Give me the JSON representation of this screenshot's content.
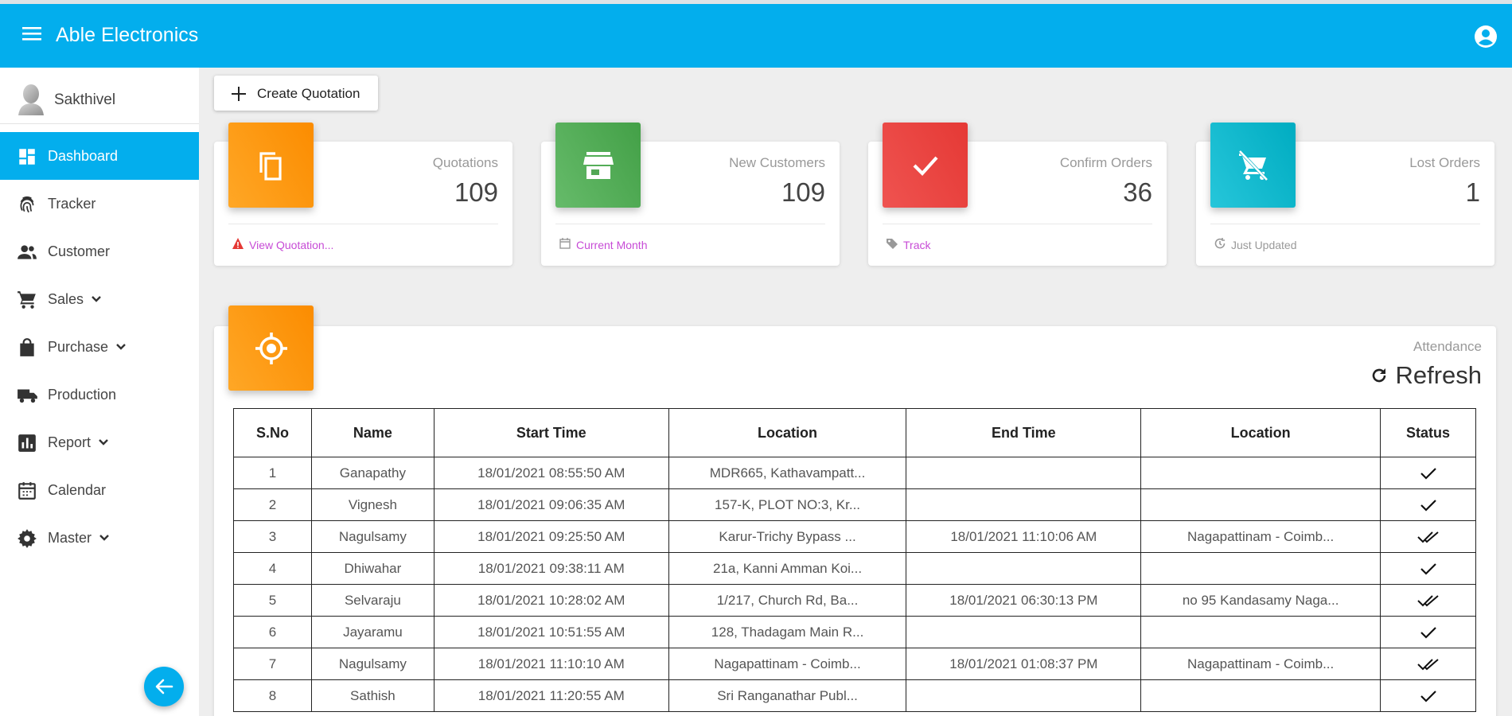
{
  "app": {
    "title": "Able Electronics"
  },
  "user": {
    "name": "Sakthivel"
  },
  "sidebar": {
    "items": [
      {
        "label": "Dashboard",
        "icon": "dashboard-icon",
        "active": true,
        "expandable": false
      },
      {
        "label": "Tracker",
        "icon": "fingerprint-icon",
        "active": false,
        "expandable": false
      },
      {
        "label": "Customer",
        "icon": "people-icon",
        "active": false,
        "expandable": false
      },
      {
        "label": "Sales",
        "icon": "cart-icon",
        "active": false,
        "expandable": true
      },
      {
        "label": "Purchase",
        "icon": "shopping-bag-icon",
        "active": false,
        "expandable": true
      },
      {
        "label": "Production",
        "icon": "truck-icon",
        "active": false,
        "expandable": false
      },
      {
        "label": "Report",
        "icon": "bar-chart-icon",
        "active": false,
        "expandable": true
      },
      {
        "label": "Calendar",
        "icon": "calendar-icon",
        "active": false,
        "expandable": false
      },
      {
        "label": "Master",
        "icon": "gear-icon",
        "active": false,
        "expandable": true
      }
    ]
  },
  "toolbar": {
    "create_label": "Create Quotation"
  },
  "cards": [
    {
      "title": "Quotations",
      "value": "109",
      "footer": "View Quotation...",
      "footer_icon": "warning-icon",
      "footer_color": "#c74bd6",
      "icon": "copy-icon",
      "gradient": [
        "#ffa726",
        "#fb8c00"
      ]
    },
    {
      "title": "New Customers",
      "value": "109",
      "footer": "Current Month",
      "footer_icon": "calendar-icon",
      "footer_color": "#c74bd6",
      "icon": "store-icon",
      "gradient": [
        "#66bb6a",
        "#43a047"
      ]
    },
    {
      "title": "Confirm Orders",
      "value": "36",
      "footer": "Track",
      "footer_icon": "tag-icon",
      "footer_color": "#c74bd6",
      "icon": "check-icon",
      "gradient": [
        "#ef5350",
        "#e53935"
      ]
    },
    {
      "title": "Lost Orders",
      "value": "1",
      "footer": "Just Updated",
      "footer_icon": "update-icon",
      "footer_color": "#999999",
      "icon": "remove-cart-icon",
      "gradient": [
        "#26c6da",
        "#00acc1"
      ]
    }
  ],
  "attendance": {
    "title": "Attendance",
    "refresh_label": "Refresh",
    "columns": [
      "S.No",
      "Name",
      "Start Time",
      "Location",
      "End Time",
      "Location",
      "Status"
    ],
    "rows": [
      {
        "sno": "1",
        "name": "Ganapathy",
        "start": "18/01/2021 08:55:50 AM",
        "start_loc": "MDR665, Kathavampatt...",
        "end": "",
        "end_loc": "",
        "status": "single-check"
      },
      {
        "sno": "2",
        "name": "Vignesh",
        "start": "18/01/2021 09:06:35 AM",
        "start_loc": "157-K, PLOT NO:3, Kr...",
        "end": "",
        "end_loc": "",
        "status": "single-check"
      },
      {
        "sno": "3",
        "name": "Nagulsamy",
        "start": "18/01/2021 09:25:50 AM",
        "start_loc": "Karur-Trichy Bypass ...",
        "end": "18/01/2021 11:10:06 AM",
        "end_loc": "Nagapattinam - Coimb...",
        "status": "double-check"
      },
      {
        "sno": "4",
        "name": "Dhiwahar",
        "start": "18/01/2021 09:38:11 AM",
        "start_loc": "21a, Kanni Amman Koi...",
        "end": "",
        "end_loc": "",
        "status": "single-check"
      },
      {
        "sno": "5",
        "name": "Selvaraju",
        "start": "18/01/2021 10:28:02 AM",
        "start_loc": "1/217, Church Rd, Ba...",
        "end": "18/01/2021 06:30:13 PM",
        "end_loc": "no 95 Kandasamy Naga...",
        "status": "double-check"
      },
      {
        "sno": "6",
        "name": "Jayaramu",
        "start": "18/01/2021 10:51:55 AM",
        "start_loc": "128, Thadagam Main R...",
        "end": "",
        "end_loc": "",
        "status": "single-check"
      },
      {
        "sno": "7",
        "name": "Nagulsamy",
        "start": "18/01/2021 11:10:10 AM",
        "start_loc": "Nagapattinam - Coimb...",
        "end": "18/01/2021 01:08:37 PM",
        "end_loc": "Nagapattinam - Coimb...",
        "status": "double-check"
      },
      {
        "sno": "8",
        "name": "Sathish",
        "start": "18/01/2021 11:20:55 AM",
        "start_loc": "Sri Ranganathar Publ...",
        "end": "",
        "end_loc": "",
        "status": "single-check"
      }
    ]
  }
}
